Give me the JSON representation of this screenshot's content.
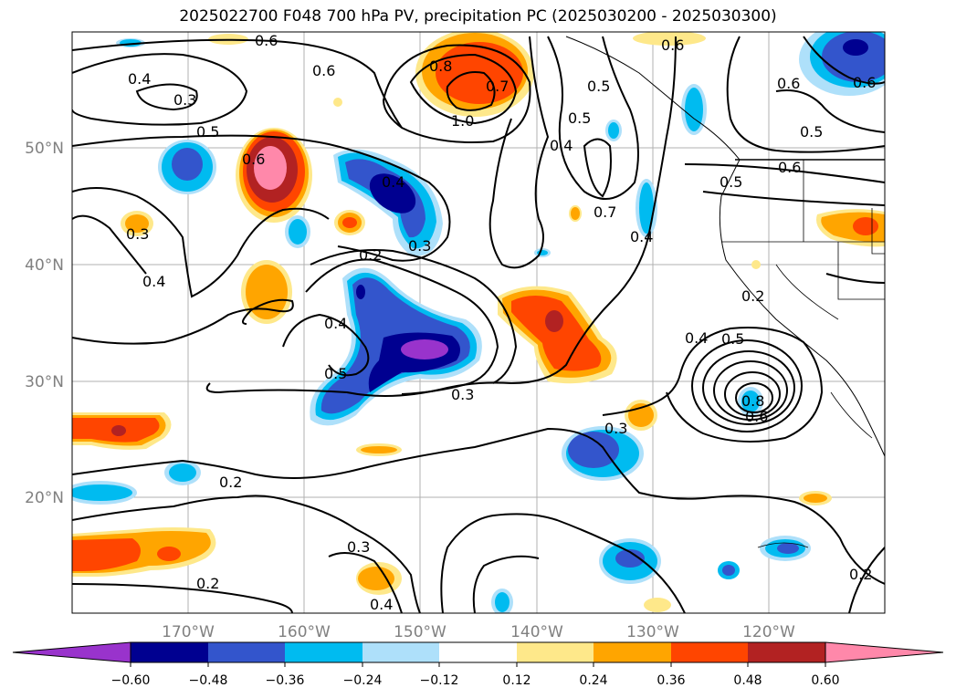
{
  "title": "2025022700 F048 700 hPa PV, precipitation PC (2025030200 - 2025030300)",
  "map": {
    "lon_ticks": [
      "170°W",
      "160°W",
      "150°W",
      "140°W",
      "130°W",
      "120°W"
    ],
    "lat_ticks": [
      "50°N",
      "40°N",
      "30°N",
      "20°N"
    ],
    "contour_labels": [
      "0.6",
      "0.6",
      "0.4",
      "0.3",
      "0.5",
      "0.8",
      "0.7",
      "1.0",
      "0.5",
      "0.4",
      "0.6",
      "0.5",
      "0.6",
      "0.5",
      "0.6",
      "0.5",
      "0.6",
      "0.3",
      "0.4",
      "0.4",
      "0.3",
      "0.2",
      "0.4",
      "0.5",
      "0.7",
      "0.2",
      "0.4",
      "0.5",
      "0.8",
      "0.6",
      "0.3",
      "0.3",
      "0.2",
      "0.2",
      "0.3",
      "0.4",
      "0.2",
      "0.6",
      "0.4"
    ]
  },
  "colorbar": {
    "ticks": [
      "−0.60",
      "−0.48",
      "−0.36",
      "−0.24",
      "−0.12",
      "0.12",
      "0.24",
      "0.36",
      "0.48",
      "0.60"
    ],
    "colors": [
      "#9933cc",
      "#000090",
      "#3355cc",
      "#00bbf0",
      "#aee0fa",
      "#ffffff",
      "#fee88a",
      "#ffa500",
      "#ff4500",
      "#b22222",
      "#ff88aa",
      "#ff88aa"
    ]
  }
}
